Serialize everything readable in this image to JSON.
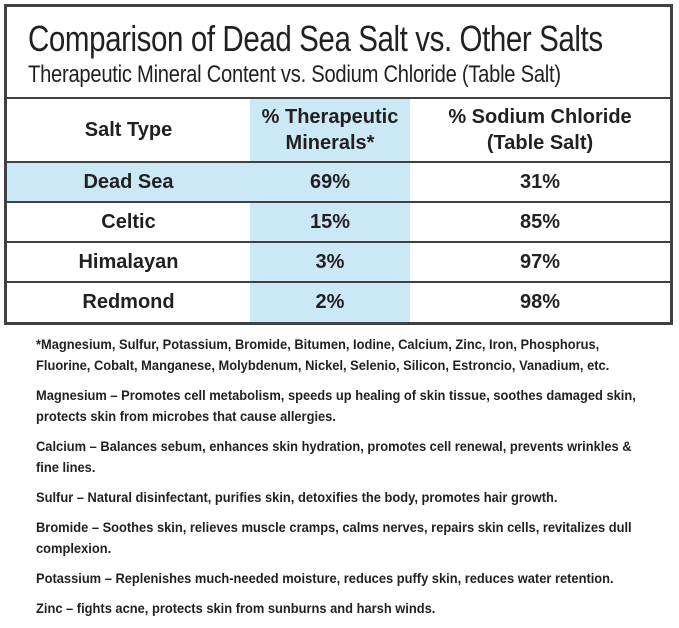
{
  "title": "Comparison of Dead Sea Salt vs. Other Salts",
  "subtitle": "Therapeutic Mineral Content vs. Sodium Chloride (Table Salt)",
  "table": {
    "header": {
      "salt_type": "Salt Type",
      "therapeutic_line1": "% Therapeutic",
      "therapeutic_line2": "Minerals*",
      "sodium_line1": "% Sodium Chloride",
      "sodium_line2": "(Table Salt)"
    },
    "rows": [
      {
        "salt": "Dead Sea",
        "therapeutic": "69%",
        "sodium": "31%",
        "highlighted": true
      },
      {
        "salt": "Celtic",
        "therapeutic": "15%",
        "sodium": "85%",
        "highlighted": false
      },
      {
        "salt": "Himalayan",
        "therapeutic": "3%",
        "sodium": "97%",
        "highlighted": false
      },
      {
        "salt": "Redmond",
        "therapeutic": "2%",
        "sodium": "98%",
        "highlighted": false
      }
    ]
  },
  "chart_data": {
    "type": "table",
    "title": "Comparison of Dead Sea Salt vs. Other Salts",
    "subtitle": "Therapeutic Mineral Content vs. Sodium Chloride (Table Salt)",
    "columns": [
      "Salt Type",
      "% Therapeutic Minerals*",
      "% Sodium Chloride (Table Salt)"
    ],
    "categories": [
      "Dead Sea",
      "Celtic",
      "Himalayan",
      "Redmond"
    ],
    "series": [
      {
        "name": "% Therapeutic Minerals",
        "values": [
          69,
          15,
          3,
          2
        ],
        "unit": "%"
      },
      {
        "name": "% Sodium Chloride (Table Salt)",
        "values": [
          31,
          85,
          97,
          98
        ],
        "unit": "%"
      }
    ],
    "highlighted_row": "Dead Sea",
    "highlight_color": "#cbe8f7"
  },
  "footnotes": {
    "paragraphs": [
      "*Magnesium, Sulfur, Potassium, Bromide, Bitumen, Iodine, Calcium, Zinc, Iron, Phosphorus, Fluorine, Cobalt, Manganese, Molybdenum, Nickel, Selenio, Silicon, Estroncio, Vanadium, etc.",
      "Magnesium – Promotes cell metabolism, speeds up healing of skin tissue, soothes damaged skin, protects skin from microbes that cause allergies.",
      "Calcium – Balances sebum, enhances skin hydration, promotes cell renewal, prevents wrinkles & fine lines.",
      "Sulfur – Natural disinfectant, purifies skin, detoxifies the body, promotes hair growth.",
      "Bromide – Soothes skin, relieves muscle cramps, calms nerves, repairs skin cells, revitalizes dull complexion.",
      "Potassium – Replenishes much-needed moisture, reduces puffy skin, reduces water retention.",
      "Zinc – fights acne, protects skin from sunburns and harsh winds."
    ]
  },
  "colors": {
    "highlight_blue": "#cbe8f7",
    "border": "#414042",
    "text": "#231f20",
    "background": "#ffffff"
  }
}
